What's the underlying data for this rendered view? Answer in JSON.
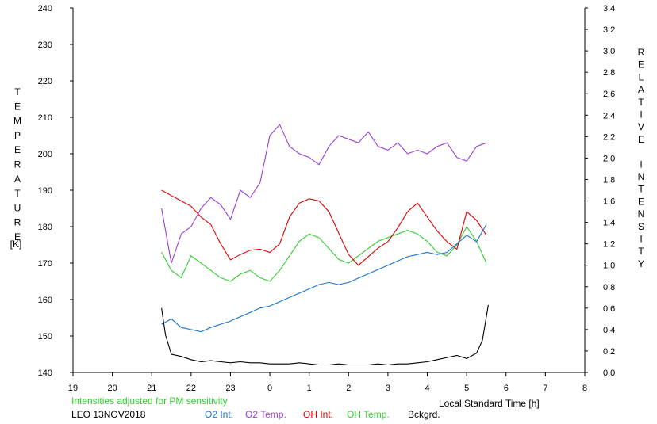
{
  "chart_data": {
    "type": "line",
    "station": "LEO 13NOV2018",
    "note": "Intensities adjusted for PM sensitivity",
    "xlabel": "Local Standard Time [h]",
    "left_label_letters": [
      "T",
      "E",
      "M",
      "P",
      "E",
      "R",
      "A",
      "T",
      "U",
      "R",
      "E"
    ],
    "left_unit": "[K]",
    "right_label_letters": [
      "R",
      "E",
      "L",
      "A",
      "T",
      "I",
      "V",
      "E",
      "",
      "I",
      "N",
      "T",
      "E",
      "N",
      "S",
      "I",
      "T",
      "Y"
    ],
    "x_ticks": [
      "19",
      "20",
      "21",
      "22",
      "23",
      "0",
      "1",
      "2",
      "3",
      "4",
      "5",
      "6",
      "7",
      "8"
    ],
    "xlim": [
      19,
      32
    ],
    "y_left_ticks": [
      "140",
      "150",
      "160",
      "170",
      "180",
      "190",
      "200",
      "210",
      "220",
      "230",
      "240"
    ],
    "ylim_left": [
      140,
      240
    ],
    "y_right_ticks": [
      "0.0",
      "0.2",
      "0.4",
      "0.6",
      "0.8",
      "1.0",
      "1.2",
      "1.4",
      "1.6",
      "1.8",
      "2.0",
      "2.2",
      "2.4",
      "2.6",
      "2.8",
      "3.0",
      "3.2",
      "3.4"
    ],
    "ylim_right": [
      0,
      3.4
    ],
    "colors": {
      "o2_int": "#1874d2",
      "o2_temp": "#9a3fd6",
      "oh_int": "#dd0000",
      "oh_temp": "#33cc33",
      "bckgrd": "#000000",
      "note": "#33cc33"
    },
    "series": [
      {
        "name": "O2 Int.",
        "axis": "right",
        "x": [
          21.25,
          21.5,
          21.75,
          22.0,
          22.25,
          22.5,
          22.75,
          23.0,
          23.25,
          23.5,
          23.75,
          24.0,
          24.25,
          24.5,
          24.75,
          25.0,
          25.25,
          25.5,
          25.75,
          26.0,
          26.25,
          26.5,
          26.75,
          27.0,
          27.25,
          27.5,
          27.75,
          28.0,
          28.25,
          28.5,
          28.75,
          29.0,
          29.25,
          29.5
        ],
        "y": [
          0.45,
          0.5,
          0.42,
          0.4,
          0.38,
          0.42,
          0.45,
          0.48,
          0.52,
          0.56,
          0.6,
          0.62,
          0.66,
          0.7,
          0.74,
          0.78,
          0.82,
          0.84,
          0.82,
          0.84,
          0.88,
          0.92,
          0.96,
          1.0,
          1.04,
          1.08,
          1.1,
          1.12,
          1.1,
          1.12,
          1.2,
          1.28,
          1.22,
          1.38
        ]
      },
      {
        "name": "O2 Temp.",
        "axis": "left",
        "x": [
          21.25,
          21.5,
          21.75,
          22.0,
          22.25,
          22.5,
          22.75,
          23.0,
          23.25,
          23.5,
          23.75,
          24.0,
          24.25,
          24.5,
          24.75,
          25.0,
          25.25,
          25.5,
          25.75,
          26.0,
          26.25,
          26.5,
          26.75,
          27.0,
          27.25,
          27.5,
          27.75,
          28.0,
          28.25,
          28.5,
          28.75,
          29.0,
          29.25,
          29.5
        ],
        "y": [
          185,
          170,
          178,
          180,
          185,
          188,
          186,
          182,
          190,
          188,
          192,
          205,
          208,
          202,
          200,
          199,
          197,
          202,
          205,
          204,
          203,
          206,
          202,
          201,
          203,
          200,
          201,
          200,
          202,
          203,
          199,
          198,
          202,
          203
        ]
      },
      {
        "name": "OH Int.",
        "axis": "right",
        "x": [
          21.25,
          21.5,
          21.75,
          22.0,
          22.25,
          22.5,
          22.75,
          23.0,
          23.25,
          23.5,
          23.75,
          24.0,
          24.25,
          24.5,
          24.75,
          25.0,
          25.25,
          25.5,
          25.75,
          26.0,
          26.25,
          26.5,
          26.75,
          27.0,
          27.25,
          27.5,
          27.75,
          28.0,
          28.25,
          28.5,
          28.75,
          29.0,
          29.25,
          29.5
        ],
        "y": [
          1.7,
          1.65,
          1.6,
          1.55,
          1.45,
          1.38,
          1.2,
          1.05,
          1.1,
          1.14,
          1.15,
          1.12,
          1.2,
          1.45,
          1.58,
          1.62,
          1.6,
          1.5,
          1.3,
          1.1,
          1.0,
          1.08,
          1.16,
          1.22,
          1.35,
          1.5,
          1.58,
          1.45,
          1.32,
          1.22,
          1.15,
          1.5,
          1.42,
          1.28
        ]
      },
      {
        "name": "OH Temp.",
        "axis": "left",
        "x": [
          21.25,
          21.5,
          21.75,
          22.0,
          22.25,
          22.5,
          22.75,
          23.0,
          23.25,
          23.5,
          23.75,
          24.0,
          24.25,
          24.5,
          24.75,
          25.0,
          25.25,
          25.5,
          25.75,
          26.0,
          26.25,
          26.5,
          26.75,
          27.0,
          27.25,
          27.5,
          27.75,
          28.0,
          28.25,
          28.5,
          28.75,
          29.0,
          29.25,
          29.5
        ],
        "y": [
          173,
          168,
          166,
          172,
          170,
          168,
          166,
          165,
          167,
          168,
          166,
          165,
          168,
          172,
          176,
          178,
          177,
          174,
          171,
          170,
          172,
          174,
          176,
          177,
          178,
          179,
          178,
          176,
          173,
          172,
          175,
          180,
          176,
          170
        ]
      },
      {
        "name": "Bckgrd.",
        "axis": "right",
        "x": [
          21.25,
          21.35,
          21.5,
          21.75,
          22.0,
          22.25,
          22.5,
          22.75,
          23.0,
          23.25,
          23.5,
          23.75,
          24.0,
          24.25,
          24.5,
          24.75,
          25.0,
          25.25,
          25.5,
          25.75,
          26.0,
          26.25,
          26.5,
          26.75,
          27.0,
          27.25,
          27.5,
          27.75,
          28.0,
          28.25,
          28.5,
          28.75,
          29.0,
          29.25,
          29.4,
          29.55
        ],
        "y": [
          0.6,
          0.35,
          0.17,
          0.15,
          0.12,
          0.1,
          0.11,
          0.1,
          0.09,
          0.1,
          0.09,
          0.09,
          0.08,
          0.08,
          0.08,
          0.09,
          0.08,
          0.07,
          0.07,
          0.08,
          0.07,
          0.07,
          0.07,
          0.08,
          0.07,
          0.08,
          0.08,
          0.09,
          0.1,
          0.12,
          0.14,
          0.16,
          0.13,
          0.18,
          0.3,
          0.63
        ]
      }
    ],
    "legend": [
      {
        "label": "O2 Int.",
        "color": "#1874d2"
      },
      {
        "label": "O2 Temp.",
        "color": "#9a3fd6"
      },
      {
        "label": "OH Int.",
        "color": "#dd0000"
      },
      {
        "label": "OH Temp.",
        "color": "#33cc33"
      },
      {
        "label": "Bckgrd.",
        "color": "#000000"
      }
    ]
  }
}
